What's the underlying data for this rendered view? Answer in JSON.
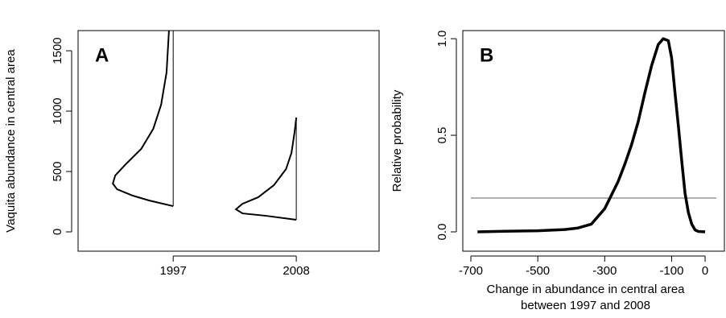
{
  "chart_data": [
    {
      "type": "half-violin",
      "panel": "A",
      "ylabel": "Vaquita abundance in central area",
      "x": [
        1997,
        2008
      ],
      "xlim": [
        1988.5,
        2015.4
      ],
      "xticks": [
        1997,
        2008
      ],
      "ylim": [
        -160,
        1667
      ],
      "yticks": [
        0,
        500,
        1000,
        1500
      ],
      "color": "#000000",
      "box": true,
      "series": [
        {
          "abundance": [
            213,
            260,
            300,
            353,
            400,
            467,
            553,
            687,
            853,
            1053,
            1320,
            1667
          ],
          "density": [
            0,
            0.4,
            0.67,
            0.93,
            1.0,
            0.96,
            0.8,
            0.53,
            0.33,
            0.2,
            0.11,
            0.07
          ]
        },
        {
          "abundance": [
            100,
            133,
            153,
            187,
            233,
            287,
            387,
            520,
            653,
            820,
            947
          ],
          "density": [
            0,
            0.5,
            0.89,
            1.0,
            0.89,
            0.63,
            0.37,
            0.17,
            0.08,
            0.03,
            0
          ]
        }
      ]
    },
    {
      "type": "line",
      "panel": "B",
      "ylabel": "Relative probability",
      "xlabel": [
        "Change in abundance in central area",
        "between 1997 and 2008"
      ],
      "x": [
        -680,
        -600,
        -500,
        -420,
        -380,
        -340,
        -330,
        -300,
        -280,
        -260,
        -240,
        -220,
        -200,
        -180,
        -160,
        -140,
        -125,
        -110,
        -100,
        -90,
        -80,
        -70,
        -60,
        -50,
        -40,
        -30,
        -20,
        0
      ],
      "values": [
        0,
        0.003,
        0.006,
        0.012,
        0.02,
        0.04,
        0.06,
        0.12,
        0.19,
        0.26,
        0.35,
        0.45,
        0.57,
        0.72,
        0.86,
        0.97,
        1.0,
        0.99,
        0.9,
        0.72,
        0.55,
        0.37,
        0.2,
        0.1,
        0.04,
        0.01,
        0.002,
        0
      ],
      "color": "#000000",
      "hline": 0.175,
      "hline_color": "#b0b0b0",
      "xlim": [
        -724,
        57.6
      ],
      "xticks": [
        -700,
        -500,
        -300,
        -100,
        0
      ],
      "ylim": [
        -0.1,
        1.042
      ],
      "yticks": [
        {
          "value": 0,
          "label": "0.0"
        },
        {
          "value": 0.5,
          "label": "0.5"
        },
        {
          "value": 1,
          "label": "1.0"
        }
      ],
      "box": true
    }
  ]
}
